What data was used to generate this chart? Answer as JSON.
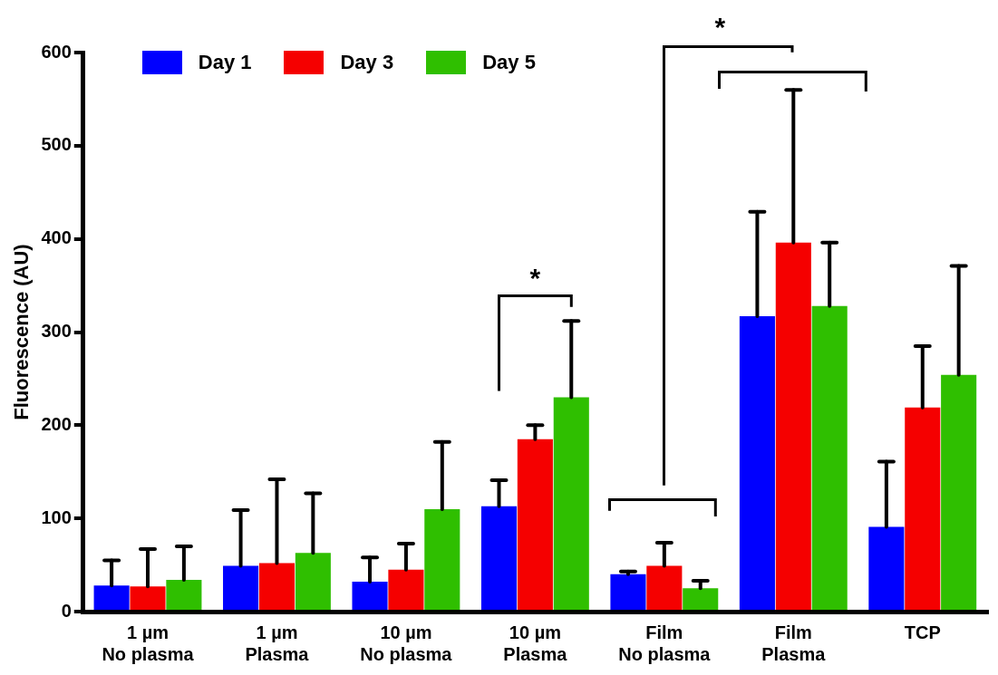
{
  "chart_data": {
    "type": "bar",
    "ylabel": "Fluorescence (AU)",
    "categories": [
      "1 µm\nNo plasma",
      "1 µm\nPlasma",
      "10 µm\nNo plasma",
      "10 µm\nPlasma",
      "Film\nNo plasma",
      "Film\nPlasma",
      "TCP"
    ],
    "series": [
      {
        "name": "Day 1",
        "color": "#0000ff",
        "values": [
          28,
          49,
          32,
          113,
          40,
          317,
          91
        ],
        "errors": [
          [
            28,
            55
          ],
          [
            49,
            109
          ],
          [
            32,
            58
          ],
          [
            113,
            141
          ],
          [
            40,
            43
          ],
          [
            317,
            429
          ],
          [
            91,
            161
          ]
        ]
      },
      {
        "name": "Day 3",
        "color": "#f50000",
        "values": [
          27,
          52,
          45,
          185,
          49,
          396,
          219
        ],
        "errors": [
          [
            27,
            67
          ],
          [
            52,
            142
          ],
          [
            45,
            73
          ],
          [
            185,
            200
          ],
          [
            49,
            74
          ],
          [
            396,
            560
          ],
          [
            219,
            285
          ]
        ]
      },
      {
        "name": "Day 5",
        "color": "#2fbf00",
        "values": [
          34,
          63,
          110,
          230,
          25,
          328,
          254
        ],
        "errors": [
          [
            34,
            70
          ],
          [
            63,
            127
          ],
          [
            110,
            182
          ],
          [
            230,
            312
          ],
          [
            25,
            33
          ],
          [
            328,
            396
          ],
          [
            254,
            371
          ]
        ]
      }
    ],
    "ylim": [
      0,
      600
    ],
    "yticks": [
      0,
      100,
      200,
      300,
      400,
      500,
      600
    ],
    "grid": false,
    "legend": "top left",
    "annotations": [
      "*",
      "*"
    ]
  }
}
